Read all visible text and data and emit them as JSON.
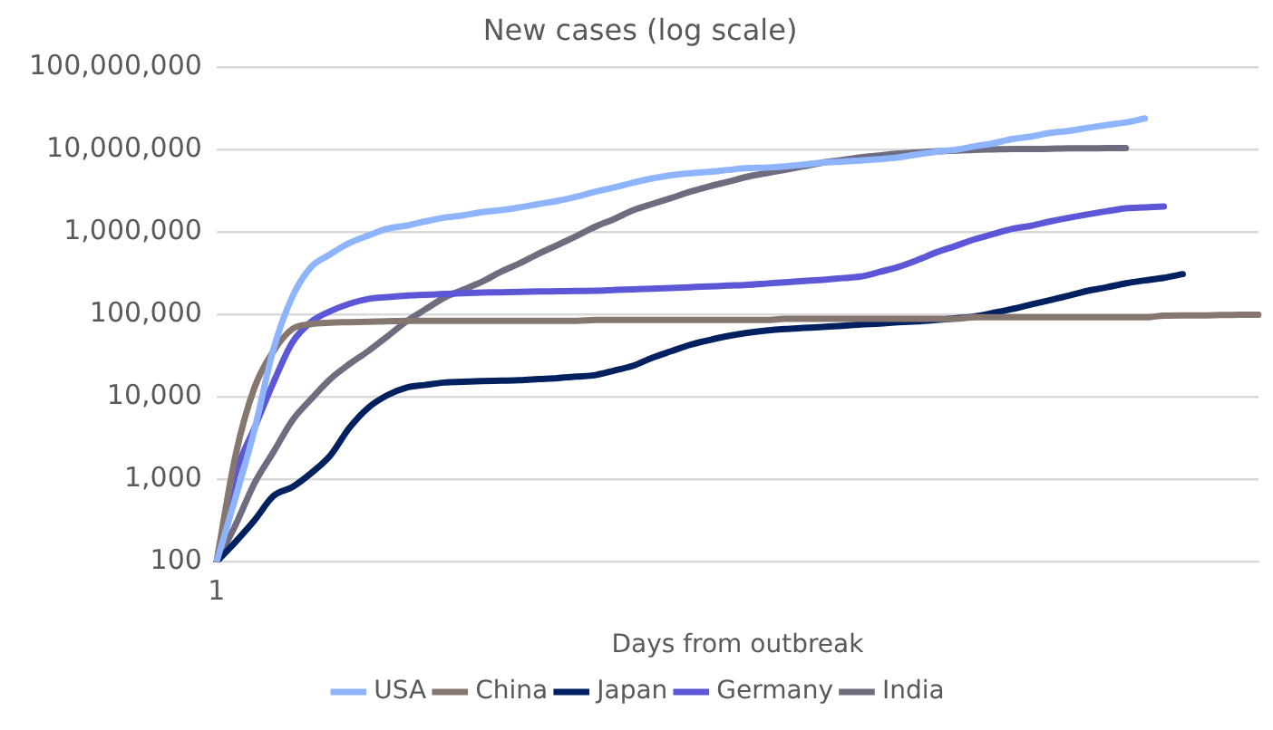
{
  "chart_data": {
    "type": "line",
    "title": "New cases (log scale)",
    "xlabel": "Days from outbreak",
    "categories": [
      "1",
      null,
      null,
      null,
      null,
      null,
      null,
      null,
      null,
      null,
      null,
      null,
      null,
      null,
      null,
      null,
      null,
      null,
      null,
      null,
      null,
      null,
      null,
      null,
      null,
      null,
      null,
      null,
      null,
      null,
      null,
      null,
      null,
      null,
      null,
      null,
      null,
      null,
      null,
      null,
      null,
      null,
      null,
      null,
      null,
      null,
      null,
      null,
      null,
      null,
      null,
      null,
      null,
      null,
      null,
      null
    ],
    "log": "y",
    "ylim": [
      100,
      100000000
    ],
    "yticks": [
      100,
      {
        "value": 1000,
        "label": "1,000"
      },
      {
        "value": 10000,
        "label": "10,000"
      },
      {
        "value": 100000,
        "label": "100,000"
      },
      {
        "value": 1000000,
        "label": "1,000,000"
      },
      {
        "value": 10000000,
        "label": "10,000,000"
      },
      {
        "value": 100000000,
        "label": "100,000,000"
      }
    ],
    "grid": "y",
    "legend": "bottom",
    "marker": "none",
    "line_style": "solid",
    "series": [
      {
        "name": "USA",
        "color": "#8fb4fe",
        "values": [
          100,
          600,
          4000,
          38000,
          165000,
          380000,
          540000,
          740000,
          910000,
          1100000,
          1200000,
          1350000,
          1500000,
          1600000,
          1750000,
          1850000,
          2000000,
          2200000,
          2400000,
          2700000,
          3100000,
          3500000,
          4000000,
          4500000,
          4900000,
          5200000,
          5400000,
          5700000,
          6000000,
          6100000,
          6300000,
          6600000,
          7000000,
          7200000,
          7400000,
          7700000,
          8100000,
          8800000,
          9500000,
          10000000,
          11000000,
          12000000,
          13500000,
          14500000,
          16000000,
          17000000,
          18500000,
          20000000,
          21500000,
          24000000,
          null,
          null,
          null,
          null,
          null,
          null
        ]
      },
      {
        "name": "China",
        "color": "#85776f",
        "values": [
          100,
          1950,
          13000,
          36000,
          67000,
          77000,
          80000,
          81000,
          82000,
          83000,
          84000,
          84000,
          84000,
          84000,
          84000,
          84000,
          84000,
          84000,
          84000,
          84000,
          86000,
          86000,
          86000,
          86000,
          86000,
          86000,
          86000,
          86000,
          86000,
          86000,
          89000,
          89000,
          89000,
          89000,
          89000,
          89000,
          89000,
          89000,
          89000,
          89000,
          93000,
          93000,
          93000,
          93000,
          93000,
          93000,
          93000,
          93000,
          93000,
          93000,
          97000,
          98000,
          98000,
          99000,
          100000,
          100000
        ]
      },
      {
        "name": "Japan",
        "color": "#002060",
        "values": [
          100,
          175,
          320,
          630,
          810,
          1200,
          1950,
          4200,
          7400,
          10500,
          13000,
          14000,
          15000,
          15300,
          15600,
          15800,
          16000,
          16500,
          17000,
          17700,
          18500,
          21000,
          24000,
          30000,
          36000,
          43000,
          49000,
          55000,
          60000,
          64000,
          67000,
          69000,
          71000,
          73000,
          76000,
          78000,
          81000,
          83000,
          86000,
          90000,
          95000,
          105000,
          117000,
          133000,
          150000,
          170000,
          195000,
          215000,
          240000,
          260000,
          280000,
          310000,
          null,
          null,
          null,
          null
        ]
      },
      {
        "name": "Germany",
        "color": "#5b57d6",
        "values": [
          100,
          1170,
          4200,
          15000,
          46000,
          82000,
          110000,
          135000,
          155000,
          163000,
          170000,
          174000,
          178000,
          182000,
          185000,
          187000,
          189000,
          191000,
          192000,
          194000,
          195000,
          199000,
          203000,
          206000,
          210000,
          215000,
          220000,
          225000,
          230000,
          238000,
          247000,
          256000,
          265000,
          277000,
          290000,
          330000,
          380000,
          460000,
          570000,
          680000,
          820000,
          950000,
          1100000,
          1200000,
          1350000,
          1500000,
          1650000,
          1800000,
          1950000,
          2000000,
          2050000,
          null,
          null,
          null,
          null,
          null
        ]
      },
      {
        "name": "India",
        "color": "#6e6c7e",
        "values": [
          100,
          280,
          900,
          2150,
          5200,
          9500,
          16500,
          25000,
          36000,
          54000,
          82000,
          115000,
          160000,
          200000,
          250000,
          330000,
          420000,
          550000,
          700000,
          900000,
          1170000,
          1450000,
          1850000,
          2200000,
          2600000,
          3100000,
          3600000,
          4100000,
          4700000,
          5200000,
          5700000,
          6300000,
          7000000,
          7500000,
          8100000,
          8500000,
          9000000,
          9300000,
          9600000,
          9800000,
          10000000,
          10100000,
          10200000,
          10200000,
          10300000,
          10400000,
          10400000,
          10500000,
          10500000,
          null,
          null,
          null,
          null,
          null,
          null,
          null
        ]
      }
    ]
  }
}
